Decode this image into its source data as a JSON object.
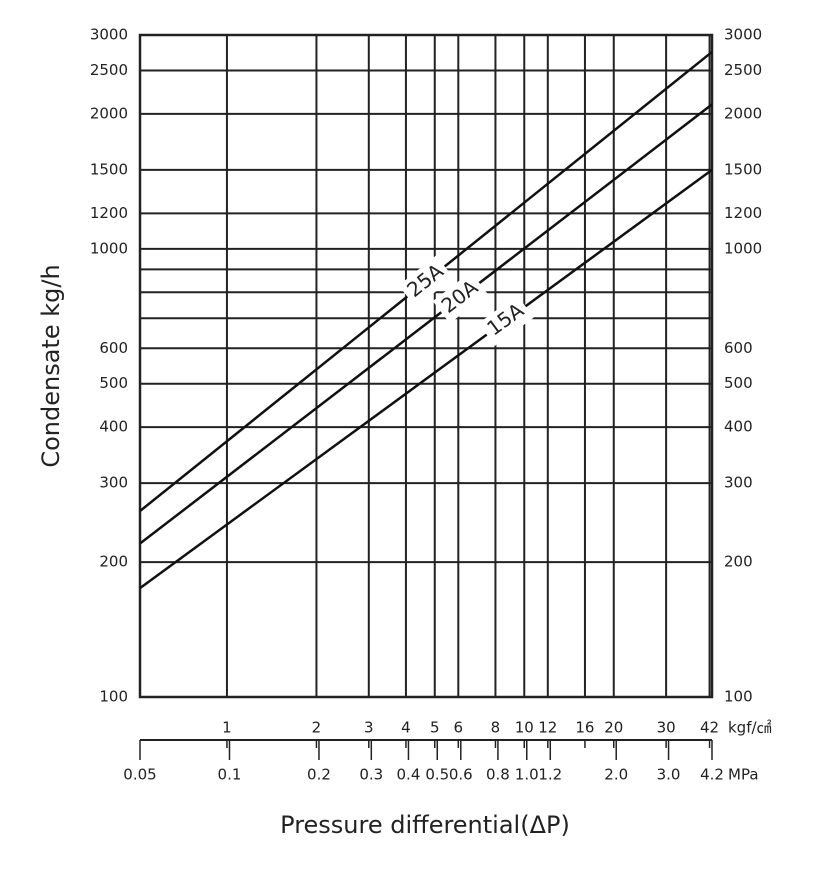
{
  "chart_data": {
    "type": "line",
    "y_label": "Condensate kg/h",
    "x_label": "Pressure differential(ΔP)",
    "x_unit": "MPa",
    "x2_unit": "kgf/㎠",
    "x_scale": "log",
    "y_scale": "log",
    "grid": true,
    "x": [
      0.05,
      4.2
    ],
    "series": [
      {
        "name": "25A",
        "color": "#111111",
        "values": [
          260,
          2750
        ]
      },
      {
        "name": "20A",
        "color": "#111111",
        "values": [
          220,
          2100
        ]
      },
      {
        "name": "15A",
        "color": "#111111",
        "values": [
          175,
          1500
        ]
      }
    ],
    "xlim": [
      0.05,
      4.2
    ],
    "xticks": [
      0.05,
      0.1,
      0.2,
      0.3,
      0.4,
      0.5,
      0.6,
      0.8,
      {
        "value": 1.0,
        "label": "1.0"
      },
      1.2,
      {
        "value": 2.0,
        "label": "2.0"
      },
      {
        "value": 3.0,
        "label": "3.0"
      },
      4.2
    ],
    "x2lim": [
      0.51,
      42.8
    ],
    "x2ticks": [
      1,
      2,
      3,
      4,
      5,
      6,
      8,
      10,
      12,
      16,
      20,
      30,
      42
    ],
    "ylim": [
      100,
      3000
    ],
    "yticks": [
      100,
      200,
      300,
      400,
      500,
      600,
      1000,
      1200,
      1500,
      2000,
      2500,
      3000
    ],
    "minor_yticks": [
      700,
      800,
      900
    ]
  }
}
